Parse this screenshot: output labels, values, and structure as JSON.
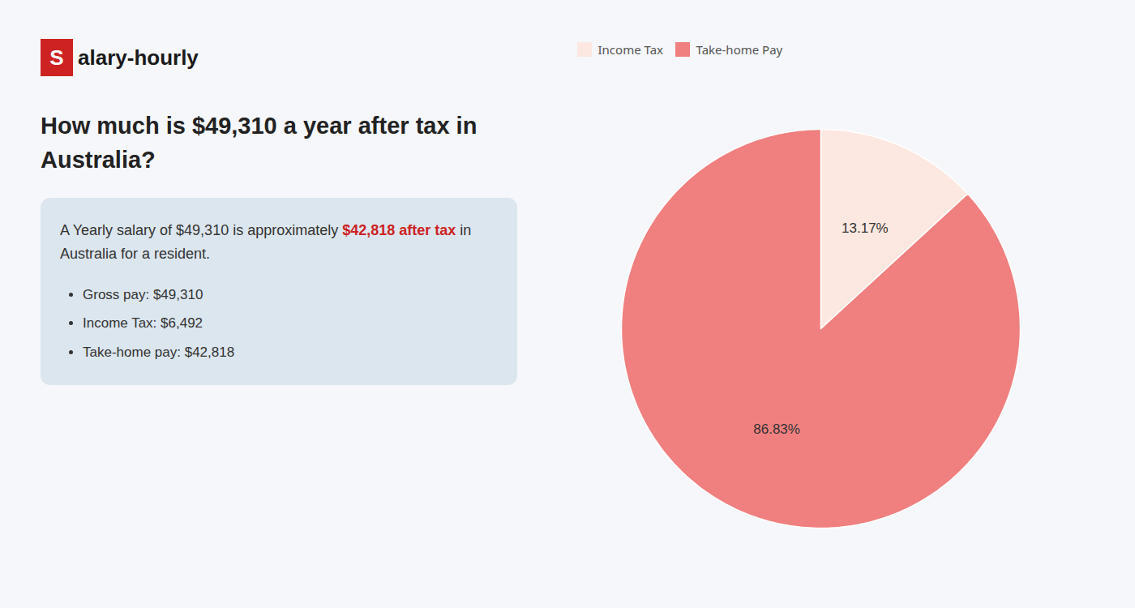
{
  "chart_data": {
    "type": "pie",
    "title": "How much is $49,310 a year after tax in Australia?",
    "annotations": [
      {
        "text": "S",
        "color": "#cc2222"
      },
      {
        "text": "alary-hourly"
      },
      {
        "text": "A Yearly salary of $49,310 is approximately "
      },
      {
        "text": "$42,818 after tax",
        "color": "#cc2222"
      },
      {
        "text": " in"
      },
      {
        "text": "Australia for a resident."
      },
      {
        "text": "Gross pay: $49,310"
      },
      {
        "text": "Income Tax: $6,492"
      },
      {
        "text": "Take-home pay: $42,818"
      }
    ],
    "categories": [
      "Income Tax",
      "Take-home Pay"
    ],
    "values": [
      13.17,
      86.83
    ],
    "value_labels": [
      "13.17%",
      "86.83%"
    ],
    "colors": [
      "#fce8e0",
      "#f08080"
    ],
    "data_labels": true,
    "legend": "top"
  }
}
